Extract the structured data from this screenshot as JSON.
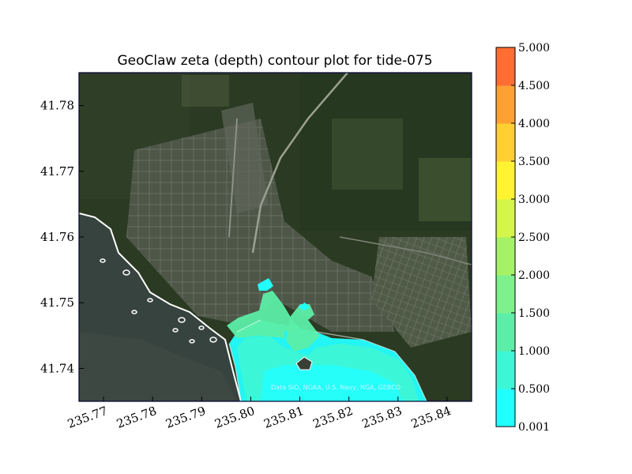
{
  "chart_data": {
    "type": "heatmap",
    "title": "GeoClaw zeta (depth) contour plot for tide-075",
    "xlabel": "",
    "ylabel": "",
    "xlim": [
      235.765,
      235.845
    ],
    "ylim": [
      41.735,
      41.785
    ],
    "x_ticks": [
      "235.77",
      "235.78",
      "235.79",
      "235.80",
      "235.81",
      "235.82",
      "235.83",
      "235.84"
    ],
    "y_ticks": [
      "41.74",
      "41.75",
      "41.76",
      "41.77",
      "41.78"
    ],
    "background": "satellite imagery",
    "attribution": "Data SIO, NOAA, U.S. Navy, NGA, GEBCO",
    "colorbar": {
      "levels": [
        "0.001",
        "0.500",
        "1.000",
        "1.500",
        "2.000",
        "2.500",
        "3.000",
        "3.500",
        "4.000",
        "4.500",
        "5.000"
      ],
      "colors": [
        "#22ffff",
        "#3ef6d6",
        "#5ceea8",
        "#7ef08c",
        "#a6f266",
        "#d4f64a",
        "#fff333",
        "#ffcf33",
        "#ffa033",
        "#ff6d33",
        "#ff3333"
      ]
    },
    "flooded_regions": [
      {
        "level": "0.001-0.500",
        "color": "#22ffff"
      },
      {
        "level": "0.500-1.000",
        "color": "#3ef6d6"
      },
      {
        "level": "1.000-1.500",
        "color": "#5ceea8"
      }
    ]
  }
}
